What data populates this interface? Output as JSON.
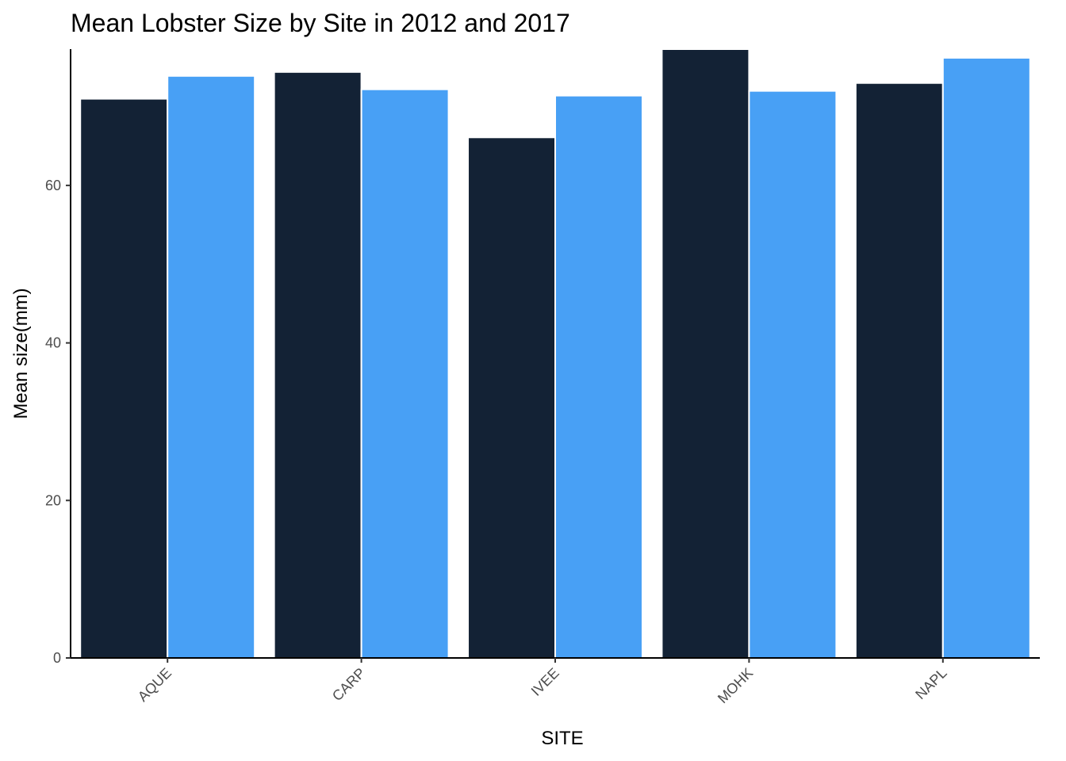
{
  "chart_data": {
    "type": "bar",
    "title": "Mean Lobster Size by Site in 2012 and 2017",
    "xlabel": "SITE",
    "ylabel": "Mean size(mm)",
    "categories": [
      "AQUE",
      "CARP",
      "IVEE",
      "MOHK",
      "NAPL"
    ],
    "series": [
      {
        "values": [
          71.0,
          74.4,
          66.1,
          77.3,
          73.0
        ],
        "color": "#132235"
      },
      {
        "values": [
          73.9,
          72.2,
          71.4,
          72.0,
          76.2
        ],
        "color": "#48A0F5"
      }
    ],
    "ylim": [
      0,
      77.3
    ],
    "yticks": [
      0,
      20,
      40,
      60
    ],
    "grid": false,
    "legend": "none"
  }
}
